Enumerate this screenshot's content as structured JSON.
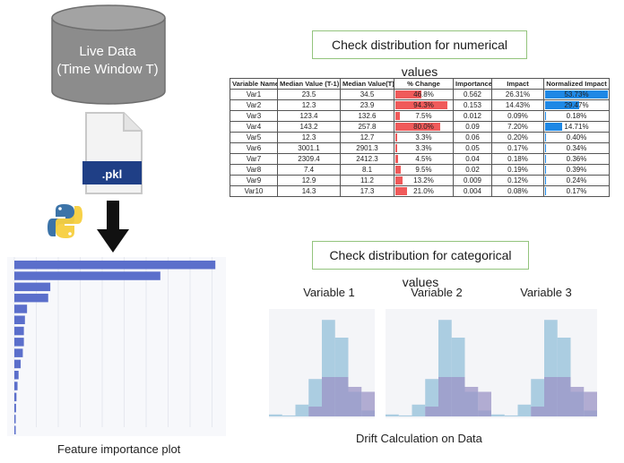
{
  "database": {
    "line1": "Live Data",
    "line2": "(Time Window T)"
  },
  "pkl": {
    "label": ".pkl"
  },
  "numerical_heading": "Check distribution for numerical values",
  "categorical_heading": "Check distribution for categorical values",
  "table": {
    "headers": [
      "Variable Name",
      "Median Value (T-1)",
      "Median Value(T)",
      "% Change",
      "Importance",
      "Impact",
      "Normalized Impact"
    ],
    "rows": [
      {
        "name": "Var1",
        "t1": "23.5",
        "t": "34.5",
        "change": "46.8%",
        "change_val": 46.8,
        "importance": "0.562",
        "impact": "26.31%",
        "norm": "53.73%",
        "norm_val": 53.73
      },
      {
        "name": "Var2",
        "t1": "12.3",
        "t": "23.9",
        "change": "94.3%",
        "change_val": 94.3,
        "importance": "0.153",
        "impact": "14.43%",
        "norm": "29.47%",
        "norm_val": 29.47
      },
      {
        "name": "Var3",
        "t1": "123.4",
        "t": "132.6",
        "change": "7.5%",
        "change_val": 7.5,
        "importance": "0.012",
        "impact": "0.09%",
        "norm": "0.18%",
        "norm_val": 0.18
      },
      {
        "name": "Var4",
        "t1": "143.2",
        "t": "257.8",
        "change": "80.0%",
        "change_val": 80.0,
        "importance": "0.09",
        "impact": "7.20%",
        "norm": "14.71%",
        "norm_val": 14.71
      },
      {
        "name": "Var5",
        "t1": "12.3",
        "t": "12.7",
        "change": "3.3%",
        "change_val": 3.3,
        "importance": "0.06",
        "impact": "0.20%",
        "norm": "0.40%",
        "norm_val": 0.4
      },
      {
        "name": "Var6",
        "t1": "3001.1",
        "t": "2901.3",
        "change": "3.3%",
        "change_val": 3.3,
        "importance": "0.05",
        "impact": "0.17%",
        "norm": "0.34%",
        "norm_val": 0.34
      },
      {
        "name": "Var7",
        "t1": "2309.4",
        "t": "2412.3",
        "change": "4.5%",
        "change_val": 4.5,
        "importance": "0.04",
        "impact": "0.18%",
        "norm": "0.36%",
        "norm_val": 0.36
      },
      {
        "name": "Var8",
        "t1": "7.4",
        "t": "8.1",
        "change": "9.5%",
        "change_val": 9.5,
        "importance": "0.02",
        "impact": "0.19%",
        "norm": "0.39%",
        "norm_val": 0.39
      },
      {
        "name": "Var9",
        "t1": "12.9",
        "t": "11.2",
        "change": "13.2%",
        "change_val": 13.2,
        "importance": "0.009",
        "impact": "0.12%",
        "norm": "0.24%",
        "norm_val": 0.24
      },
      {
        "name": "Var10",
        "t1": "14.3",
        "t": "17.3",
        "change": "21.0%",
        "change_val": 21.0,
        "importance": "0.004",
        "impact": "0.08%",
        "norm": "0.17%",
        "norm_val": 0.17
      }
    ]
  },
  "variables": [
    "Variable 1",
    "Variable 2",
    "Variable 3"
  ],
  "feature_importance": {
    "caption": "Feature importance plot",
    "values": [
      0.95,
      0.69,
      0.17,
      0.16,
      0.06,
      0.05,
      0.045,
      0.045,
      0.04,
      0.03,
      0.02,
      0.015,
      0.01,
      0.008,
      0.005,
      0.003
    ]
  },
  "drift_caption": "Drift Calculation on Data",
  "histograms": {
    "series_a": [
      0.02,
      0.01,
      0.12,
      0.38,
      0.98,
      0.8,
      0.25,
      0.06
    ],
    "series_b": [
      0.0,
      0.0,
      0.0,
      0.1,
      0.4,
      0.4,
      0.3,
      0.25
    ]
  },
  "colors": {
    "cylinder": "#8c8c8c",
    "pkl_label": "#1f3f86",
    "change_bar": "#f05a5a",
    "norm_bar": "#1e88e5",
    "fi_bar": "#5b6fcb",
    "hist_a": "#9ec6dd",
    "hist_b": "#9b93c5",
    "callout_border": "#93c47d"
  }
}
